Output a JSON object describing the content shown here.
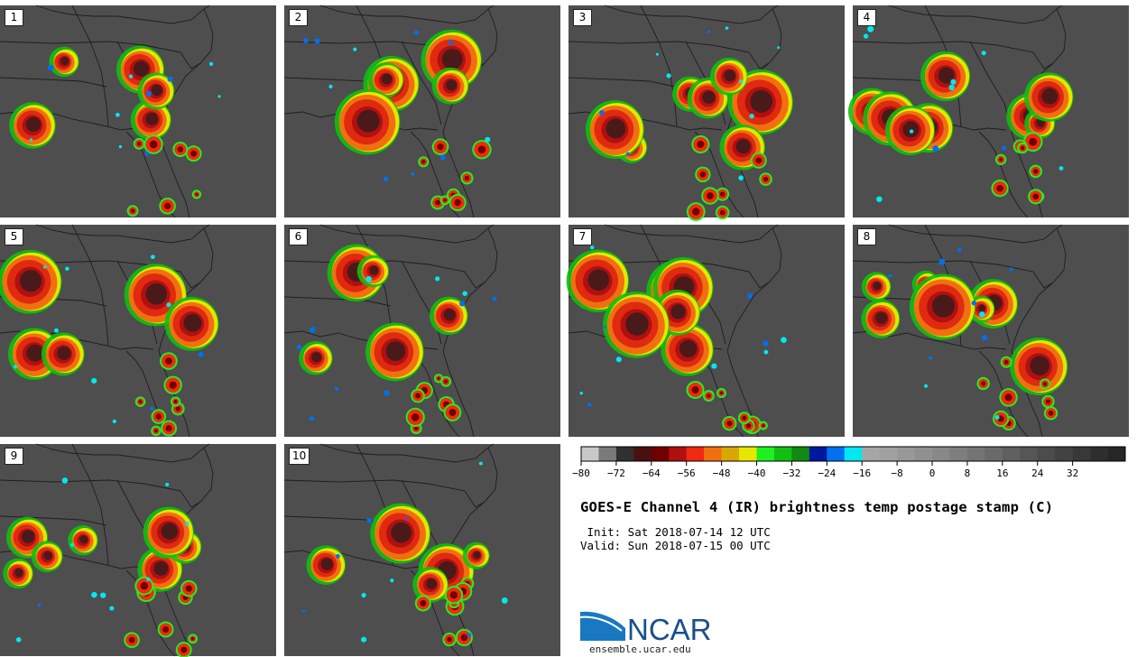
{
  "title": "GOES-E Channel 4 (IR) brightness temp postage stamp (C)",
  "init_text": " Init: Sat 2018-07-14 12 UTC",
  "valid_text": "Valid: Sun 2018-07-15 00 UTC",
  "logo": {
    "text": "NCAR",
    "url": "ensemble.ucar.edu",
    "icon": "ncar-swoosh-logo"
  },
  "panels": [
    "1",
    "2",
    "3",
    "4",
    "5",
    "6",
    "7",
    "8",
    "9",
    "10"
  ],
  "colorbar": {
    "colors": [
      "#c8c8c8",
      "#7a7a7a",
      "#303030",
      "#4a1010",
      "#700000",
      "#b01010",
      "#f02a10",
      "#f07010",
      "#d8a800",
      "#e6e600",
      "#20f020",
      "#10c010",
      "#108a10",
      "#0018a0",
      "#0070f0",
      "#00e8f0",
      "#a6a6a6",
      "#a0a0a0",
      "#989898",
      "#909090",
      "#888888",
      "#7e7e7e",
      "#747474",
      "#6a6a6a",
      "#606060",
      "#565656",
      "#4c4c4c",
      "#424242",
      "#383838",
      "#2e2e2e",
      "#262626"
    ],
    "tick_values": [
      -80,
      -72,
      -64,
      -56,
      -48,
      -40,
      -32,
      -24,
      -16,
      -8,
      0,
      8,
      16,
      24,
      32
    ],
    "tick_labels": [
      "−80",
      "−72",
      "−64",
      "−56",
      "−48",
      "−40",
      "−32",
      "−24",
      "−16",
      "−8",
      "0",
      "8",
      "16",
      "24",
      "32"
    ],
    "min": -80,
    "step": 4
  }
}
